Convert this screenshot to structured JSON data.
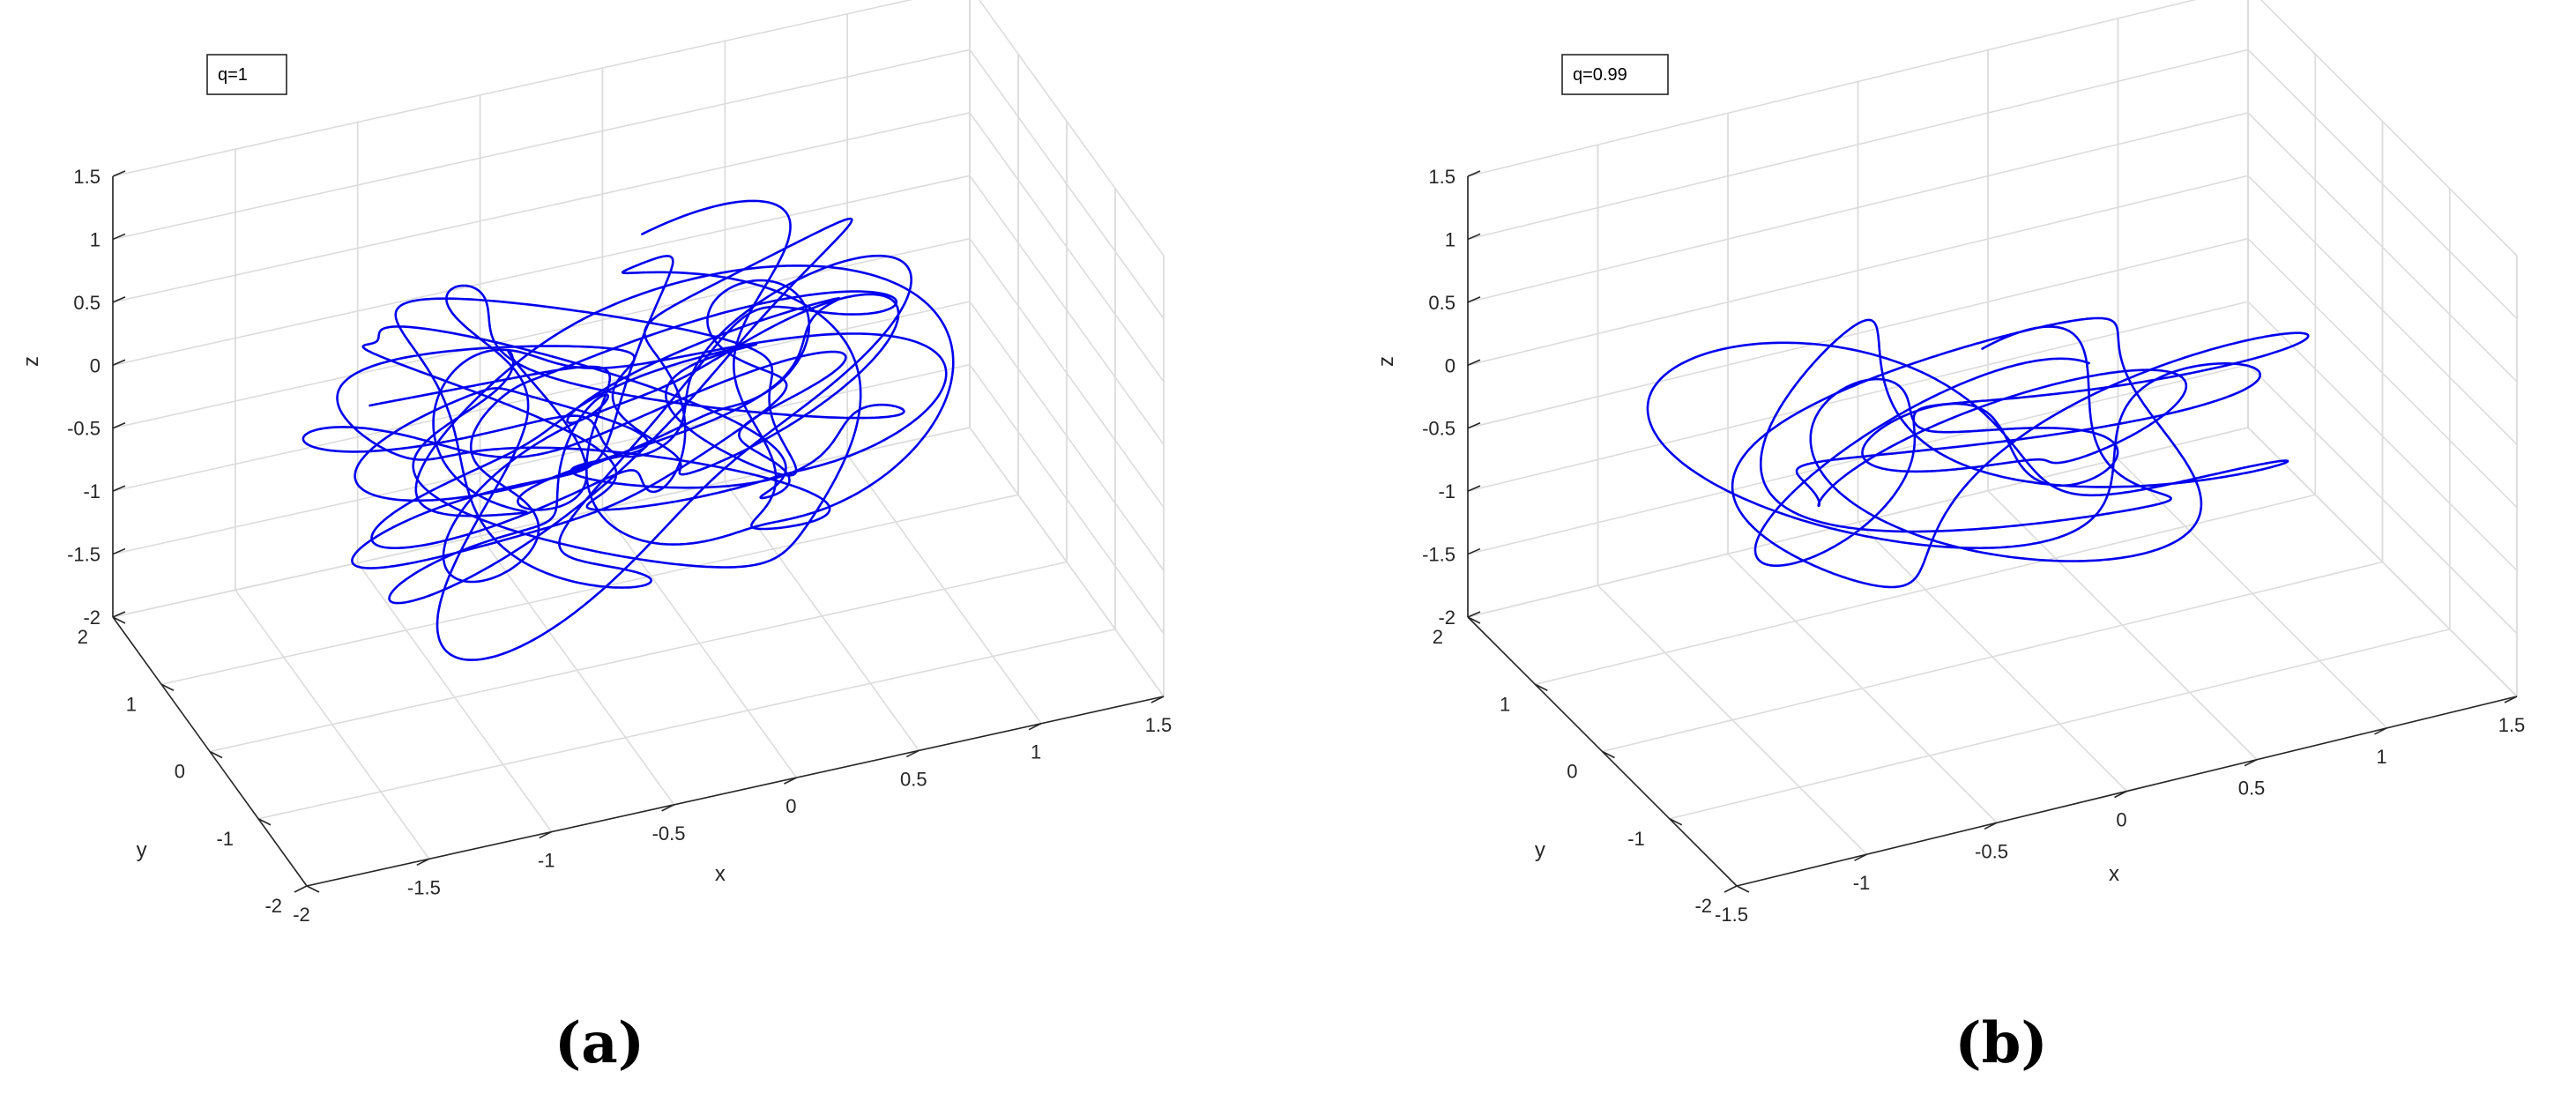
{
  "figure": {
    "captions": [
      "(a)",
      "(b)"
    ]
  },
  "chart_data": [
    {
      "type": "line",
      "subtype": "3d-phase-trajectory",
      "legend": "q=1",
      "legend_position": "top-left",
      "grid": true,
      "xlabel": "x",
      "ylabel": "y",
      "zlabel": "z",
      "xlim": [
        -2,
        1.5
      ],
      "ylim": [
        -2,
        2
      ],
      "zlim": [
        -2,
        1.5
      ],
      "xticks": [
        -2,
        -1.5,
        -1,
        -0.5,
        0,
        0.5,
        1,
        1.5
      ],
      "xtick_labels": [
        "-2",
        "-1.5",
        "-1",
        "-0.5",
        "0",
        "0.5",
        "1",
        "1.5"
      ],
      "yticks": [
        -2,
        -1,
        0,
        1,
        2
      ],
      "ytick_labels": [
        "-2",
        "-1",
        "0",
        "1",
        "2"
      ],
      "zticks": [
        -2,
        -1.5,
        -1,
        -0.5,
        0,
        0.5,
        1,
        1.5
      ],
      "ztick_labels": [
        "-2",
        "-1.5",
        "-1",
        "-0.5",
        "0",
        "0.5",
        "1",
        "1.5"
      ],
      "series_color": "#0000ee",
      "trajectory": {
        "x_center": -0.3,
        "x_amp": 1.25,
        "y_center": 0.0,
        "y_amp": 1.2,
        "z_center": -0.1,
        "z_amp": 1.1
      }
    },
    {
      "type": "line",
      "subtype": "3d-phase-trajectory",
      "legend": "q=0.99",
      "legend_position": "top-left",
      "grid": true,
      "xlabel": "x",
      "ylabel": "y",
      "zlabel": "z",
      "xlim": [
        -1.5,
        1.5
      ],
      "ylim": [
        -2,
        2
      ],
      "zlim": [
        -2,
        1.5
      ],
      "xticks": [
        -1.5,
        -1,
        -0.5,
        0,
        0.5,
        1,
        1.5
      ],
      "xtick_labels": [
        "-1.5",
        "-1",
        "-0.5",
        "0",
        "0.5",
        "1",
        "1.5"
      ],
      "yticks": [
        -2,
        -1,
        0,
        1,
        2
      ],
      "ytick_labels": [
        "-2",
        "-1",
        "0",
        "1",
        "2"
      ],
      "zticks": [
        -2,
        -1.5,
        -1,
        -0.5,
        0,
        0.5,
        1,
        1.5
      ],
      "ztick_labels": [
        "-2",
        "-1.5",
        "-1",
        "-0.5",
        "0",
        "0.5",
        "1",
        "1.5"
      ],
      "series_color": "#0000ee",
      "trajectory": {
        "x_center": 0.0,
        "x_amp": 1.1,
        "y_center": 0.0,
        "y_amp": 1.1,
        "z_center": -0.3,
        "z_amp": 1.0
      }
    }
  ]
}
